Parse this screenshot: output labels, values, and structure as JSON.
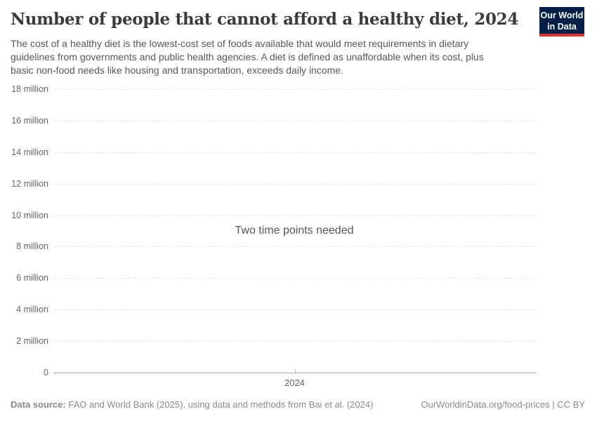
{
  "header": {
    "title": "Number of people that cannot afford a healthy diet, 2024",
    "subtitle_lines": [
      "The cost of a healthy diet is the lowest-cost set of foods available that would meet requirements in dietary",
      "guidelines from governments and public health agencies. A diet is defined as unaffordable when its cost, plus",
      "basic non-food needs like housing and transportation, exceeds daily income."
    ],
    "logo": {
      "line1": "Our World",
      "line2": "in Data",
      "bg_color": "#002147",
      "accent_color": "#d7332f"
    }
  },
  "chart_data": {
    "type": "line",
    "title": "Number of people that cannot afford a healthy diet, 2024",
    "series": [],
    "empty_message": "Two time points needed",
    "xlabel": "",
    "ylabel": "",
    "ylim": [
      0,
      18000000
    ],
    "grid": "horizontal-dashed",
    "legend": "none",
    "x_ticks": [
      {
        "label": "2024",
        "pos": 0.5
      }
    ],
    "y_ticks": [
      {
        "value": 0,
        "label": "0"
      },
      {
        "value": 2000000,
        "label": "2 million"
      },
      {
        "value": 4000000,
        "label": "4 million"
      },
      {
        "value": 6000000,
        "label": "6 million"
      },
      {
        "value": 8000000,
        "label": "8 million"
      },
      {
        "value": 10000000,
        "label": "10 million"
      },
      {
        "value": 12000000,
        "label": "12 million"
      },
      {
        "value": 14000000,
        "label": "14 million"
      },
      {
        "value": 16000000,
        "label": "16 million"
      },
      {
        "value": 18000000,
        "label": "18 million"
      }
    ],
    "colors": {
      "gridline": "#e3e3e3",
      "axis": "#a8a8a8",
      "tick_text": "#666666"
    }
  },
  "footer": {
    "source_label": "Data source:",
    "source_text": " FAO and World Bank (2025), using data and methods from Bai et al. (2024)",
    "link_text": "OurWorldinData.org/food-prices | CC BY"
  }
}
